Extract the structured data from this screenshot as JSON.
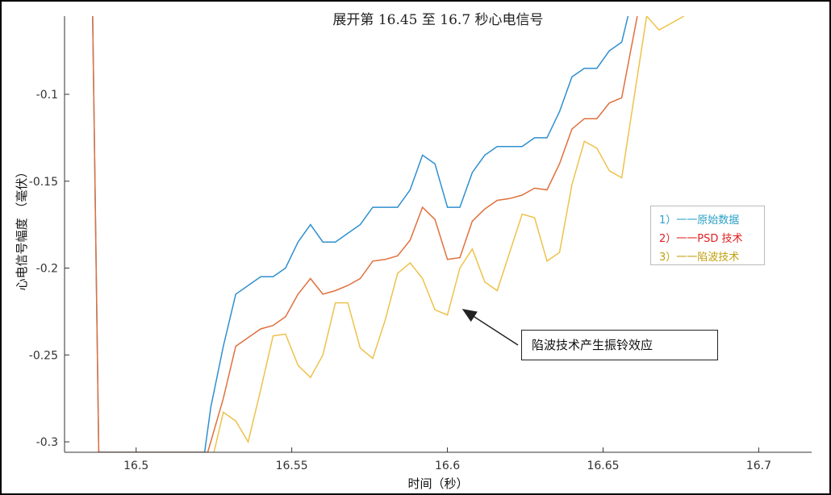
{
  "chart_data": {
    "type": "line",
    "title": "展开第 16.45 至 16.7 秒心电信号",
    "xlabel": "时间（秒）",
    "ylabel": "心电信号幅度 （毫伏）",
    "xlim": [
      16.477,
      16.717
    ],
    "ylim": [
      -0.306,
      -0.055
    ],
    "x_ticks": [
      16.5,
      16.55,
      16.6,
      16.65,
      16.7
    ],
    "x_tick_labels": [
      "16.5",
      "16.55",
      "16.6",
      "16.65",
      "16.7"
    ],
    "y_ticks": [
      -0.1,
      -0.15,
      -0.2,
      -0.25,
      -0.3
    ],
    "y_tick_labels": [
      "-0.1",
      "-0.15",
      "-0.2",
      "-0.25",
      "-0.3"
    ],
    "grid": false,
    "legend_placement": "right",
    "series": [
      {
        "name": "1）一一原始数据",
        "color": "#2f8fd0",
        "legend_color": "#2aa0c8",
        "x": [
          16.486,
          16.488,
          16.522,
          16.524,
          16.528,
          16.532,
          16.536,
          16.54,
          16.544,
          16.548,
          16.552,
          16.556,
          16.56,
          16.564,
          16.568,
          16.572,
          16.576,
          16.58,
          16.584,
          16.588,
          16.592,
          16.596,
          16.6,
          16.604,
          16.608,
          16.612,
          16.616,
          16.62,
          16.624,
          16.628,
          16.632,
          16.636,
          16.64,
          16.644,
          16.648,
          16.652,
          16.656,
          16.658
        ],
        "values": [
          -0.05,
          -0.306,
          -0.306,
          -0.28,
          -0.245,
          -0.215,
          -0.21,
          -0.205,
          -0.205,
          -0.2,
          -0.185,
          -0.175,
          -0.185,
          -0.185,
          -0.18,
          -0.175,
          -0.165,
          -0.165,
          -0.165,
          -0.155,
          -0.135,
          -0.14,
          -0.165,
          -0.165,
          -0.145,
          -0.135,
          -0.13,
          -0.13,
          -0.13,
          -0.125,
          -0.125,
          -0.11,
          -0.09,
          -0.085,
          -0.085,
          -0.075,
          -0.07,
          -0.055
        ]
      },
      {
        "name": "2）一一PSD 技术",
        "color": "#e0703e",
        "legend_color": "#e02020",
        "x": [
          16.486,
          16.488,
          16.523,
          16.528,
          16.532,
          16.536,
          16.54,
          16.544,
          16.548,
          16.552,
          16.556,
          16.56,
          16.564,
          16.568,
          16.572,
          16.576,
          16.58,
          16.584,
          16.588,
          16.592,
          16.596,
          16.6,
          16.604,
          16.608,
          16.612,
          16.616,
          16.62,
          16.624,
          16.628,
          16.632,
          16.636,
          16.64,
          16.644,
          16.648,
          16.652,
          16.656,
          16.661
        ],
        "values": [
          -0.05,
          -0.306,
          -0.306,
          -0.275,
          -0.245,
          -0.24,
          -0.235,
          -0.233,
          -0.228,
          -0.215,
          -0.206,
          -0.215,
          -0.213,
          -0.21,
          -0.206,
          -0.196,
          -0.195,
          -0.193,
          -0.184,
          -0.165,
          -0.172,
          -0.195,
          -0.194,
          -0.173,
          -0.166,
          -0.161,
          -0.16,
          -0.158,
          -0.154,
          -0.155,
          -0.14,
          -0.12,
          -0.114,
          -0.114,
          -0.105,
          -0.102,
          -0.055
        ]
      },
      {
        "name": "3）一一陷波技术",
        "color": "#eec24a",
        "legend_color": "#c0a010",
        "x": [
          16.525,
          16.528,
          16.532,
          16.536,
          16.54,
          16.544,
          16.548,
          16.552,
          16.556,
          16.56,
          16.564,
          16.568,
          16.572,
          16.576,
          16.58,
          16.584,
          16.588,
          16.592,
          16.596,
          16.6,
          16.604,
          16.608,
          16.612,
          16.616,
          16.62,
          16.624,
          16.628,
          16.632,
          16.636,
          16.64,
          16.644,
          16.648,
          16.652,
          16.656,
          16.664,
          16.668,
          16.672,
          16.676
        ],
        "values": [
          -0.306,
          -0.283,
          -0.288,
          -0.3,
          -0.27,
          -0.239,
          -0.238,
          -0.256,
          -0.263,
          -0.25,
          -0.22,
          -0.22,
          -0.246,
          -0.252,
          -0.23,
          -0.203,
          -0.197,
          -0.206,
          -0.224,
          -0.227,
          -0.2,
          -0.189,
          -0.208,
          -0.213,
          -0.191,
          -0.169,
          -0.171,
          -0.196,
          -0.191,
          -0.152,
          -0.127,
          -0.131,
          -0.144,
          -0.148,
          -0.055,
          -0.063,
          -0.059,
          -0.055
        ]
      }
    ],
    "annotation": {
      "text": "陷波技术产生振铃效应",
      "arrow_target": {
        "x": 16.604,
        "y": -0.222
      }
    }
  }
}
